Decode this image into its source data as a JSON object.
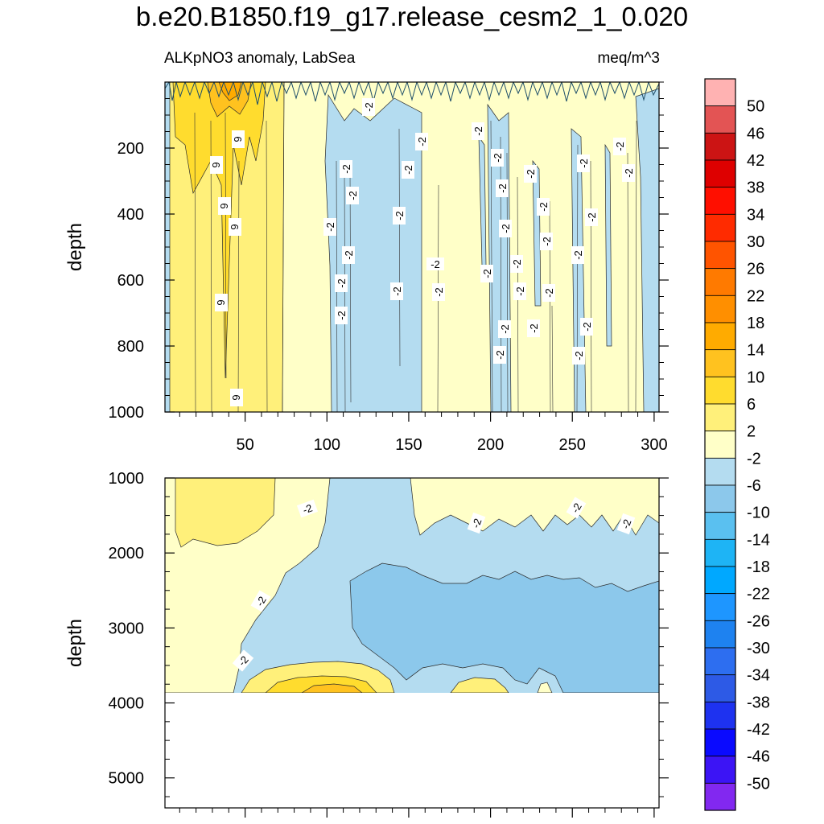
{
  "title": "b.e20.B1850.f19_g17.release_cesm2_1_0.020",
  "subtitle_left": "ALKpNO3 anomaly, LabSea",
  "subtitle_right": "meq/m^3",
  "chart_data": [
    {
      "type": "contour",
      "panel": "upper",
      "title": "ALKpNO3 anomaly, LabSea",
      "units": "meq/m^3",
      "xlabel": "",
      "ylabel": "depth",
      "xlim": [
        1,
        303
      ],
      "ylim": [
        1000,
        0
      ],
      "y_inverted": true,
      "x_ticks": [
        50,
        100,
        150,
        200,
        250,
        300
      ],
      "y_ticks": [
        200,
        400,
        600,
        800,
        1000
      ],
      "contour_interval": 4,
      "contour_line_labels": [
        "6",
        "6",
        "6",
        "6",
        "6",
        "6",
        "-2",
        "-2",
        "-2",
        "-2",
        "-2",
        "-2",
        "-2",
        "-2",
        "-2",
        "-2",
        "-2",
        "-2",
        "-2",
        "-2",
        "-2",
        "-2",
        "-2",
        "-2",
        "-2",
        "-2",
        "-2",
        "-2",
        "-2",
        "-2",
        "-2",
        "-2",
        "-2",
        "-2",
        "-2",
        "-2",
        "-2",
        "-2",
        "-2",
        "-2"
      ],
      "field_by_x": [
        {
          "x_range": [
            1,
            73
          ],
          "class": "2 to 6",
          "note": "near-surface 6 to 14"
        },
        {
          "x_range": [
            73,
            101
          ],
          "class": "-2 to 2"
        },
        {
          "x_range": [
            101,
            157
          ],
          "class": "-6 to -2"
        },
        {
          "x_range": [
            157,
            200
          ],
          "class": "-2 to 2"
        },
        {
          "x_range": [
            200,
            215
          ],
          "class": "-6 to -2"
        },
        {
          "x_range": [
            215,
            250
          ],
          "class": "-2 to 2"
        },
        {
          "x_range": [
            250,
            260
          ],
          "class": "-6 to -2"
        },
        {
          "x_range": [
            260,
            280
          ],
          "class": "-2 to 2"
        },
        {
          "x_range": [
            280,
            303
          ],
          "class": "-6 to -2"
        }
      ]
    },
    {
      "type": "contour",
      "panel": "lower",
      "xlabel": "",
      "ylabel": "depth",
      "xlim": [
        1,
        303
      ],
      "ylim": [
        5400,
        1000
      ],
      "y_inverted": true,
      "y_ticks": [
        1000,
        2000,
        3000,
        4000,
        5000
      ],
      "missing_below_depth": 3870,
      "contour_interval": 4,
      "contour_line_labels": [
        "-2",
        "-2",
        "-2",
        "-2",
        "-2",
        "-2"
      ],
      "features": [
        {
          "region": "x 1-100, depth 1000-3700",
          "class": "-2 to 2"
        },
        {
          "region": "x 110-303, depth 2300-3870",
          "class": "-10 to -6"
        },
        {
          "region": "x 45-140, depth 3600-3870",
          "class": "2 to 10"
        },
        {
          "region": "x 175-210, depth 3650-3870",
          "class": "2 to 6"
        },
        {
          "region": "remaining",
          "class": "-6 to -2"
        }
      ]
    }
  ],
  "colorbar": {
    "labels": [
      "50",
      "46",
      "42",
      "38",
      "34",
      "30",
      "26",
      "22",
      "18",
      "14",
      "10",
      "6",
      "2",
      "-2",
      "-6",
      "-10",
      "-14",
      "-18",
      "-22",
      "-26",
      "-30",
      "-34",
      "-38",
      "-42",
      "-46",
      "-50"
    ],
    "colors": [
      "#FFB2B2",
      "#E35454",
      "#CC1414",
      "#DE0000",
      "#FF0F00",
      "#FF2B00",
      "#FF5400",
      "#FF7A00",
      "#FF8F00",
      "#FFAB00",
      "#FFC21F",
      "#FFDC2E",
      "#FFF07A",
      "#FFFFC8",
      "#B4DCF0",
      "#8CC8EB",
      "#5AC0F0",
      "#1EB4F5",
      "#00A8FF",
      "#1E96FF",
      "#1E82F0",
      "#2D6EF0",
      "#2D5AE6",
      "#1E32F0",
      "#0A0AFF",
      "#3C14F5",
      "#8228F0"
    ]
  }
}
